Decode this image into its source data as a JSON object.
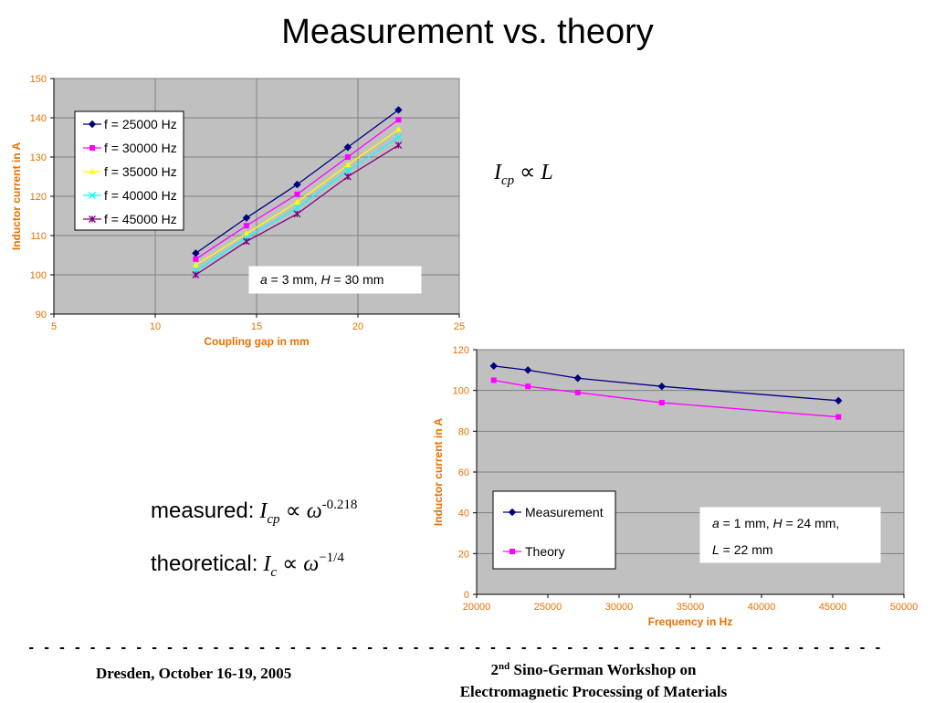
{
  "slide": {
    "title": "Measurement vs. theory",
    "formula_top": {
      "lhs": "I",
      "sub": "cp",
      "op": "∝",
      "rhs": "L"
    },
    "formula_measured": {
      "label": "measured:",
      "lhs": "I",
      "sub": "cp",
      "op": "∝",
      "rhs": "ω",
      "exp": "-0.218"
    },
    "formula_theoretical": {
      "label": "theoretical:",
      "lhs": "I",
      "sub": "c",
      "op": "∝",
      "rhs": "ω",
      "exp": "−1/4"
    },
    "footer": {
      "rule": "- - - - - - - - - - - - - - - - - - - - - - - - - - - - - - - - - - - - - - - - - - - - - - - - - - - - - - - - - - - - - - - - - - - - - - - - - - - - - - - - -",
      "left": "Dresden, October 16-19, 2005",
      "right_num": "2",
      "right_sup": "nd",
      "right_line1": " Sino-German Workshop on",
      "right_line2": "Electromagnetic Processing of Materials"
    }
  },
  "chart_data": [
    {
      "type": "line",
      "xlabel": "Coupling gap in mm",
      "ylabel": "Inductor current in A",
      "xlim": [
        5,
        25
      ],
      "ylim": [
        90,
        150
      ],
      "xticks": [
        5,
        10,
        15,
        20,
        25
      ],
      "yticks": [
        90,
        100,
        110,
        120,
        130,
        140,
        150
      ],
      "grid": true,
      "plot_background": "#c0c0c0",
      "legend_position": "top-left",
      "annotation": {
        "a_italic": "a",
        "a_text": " = 3 mm, ",
        "h_italic": "H",
        "h_text": " = 30 mm"
      },
      "x": [
        12,
        14.5,
        17,
        19.5,
        22
      ],
      "series": [
        {
          "name": "f = 25000 Hz",
          "values": [
            105.5,
            114.5,
            123,
            132.5,
            142
          ],
          "color": "#000080",
          "marker": "diamond"
        },
        {
          "name": "f = 30000 Hz",
          "values": [
            104,
            112.5,
            120.5,
            130,
            139.5
          ],
          "color": "#ff00ff",
          "marker": "square"
        },
        {
          "name": "f = 35000 Hz",
          "values": [
            102.5,
            110.5,
            118.5,
            128,
            137
          ],
          "color": "#ffff00",
          "marker": "triangle"
        },
        {
          "name": "f = 40000 Hz",
          "values": [
            101,
            109.5,
            117,
            126.5,
            135
          ],
          "color": "#00ffff",
          "marker": "x"
        },
        {
          "name": "f = 45000 Hz",
          "values": [
            100,
            108.5,
            115.5,
            125,
            133
          ],
          "color": "#800080",
          "marker": "star"
        }
      ]
    },
    {
      "type": "line",
      "xlabel": "Frequency in Hz",
      "ylabel": "Inductor current in A",
      "xlim": [
        20000,
        50000
      ],
      "ylim": [
        0,
        120
      ],
      "xticks": [
        20000,
        25000,
        30000,
        35000,
        40000,
        45000,
        50000
      ],
      "yticks": [
        0,
        20,
        40,
        60,
        80,
        100,
        120
      ],
      "grid": true,
      "plot_background": "#c0c0c0",
      "legend_position": "bottom-left",
      "annotation": {
        "line1_a": "a",
        "line1_text": " = 1 mm, ",
        "line1_h": "H",
        "line1_text2": " = 24 mm,",
        "line2_l": "L",
        "line2_text": " = 22 mm"
      },
      "series": [
        {
          "name": "Measurement",
          "x": [
            21200,
            23600,
            27100,
            33000,
            45400
          ],
          "values": [
            112,
            110,
            106,
            102,
            95
          ],
          "color": "#000080",
          "marker": "diamond"
        },
        {
          "name": "Theory",
          "x": [
            21200,
            23600,
            27100,
            33000,
            45400
          ],
          "values": [
            105,
            102,
            99,
            94,
            87
          ],
          "color": "#ff00ff",
          "marker": "square"
        }
      ]
    }
  ]
}
